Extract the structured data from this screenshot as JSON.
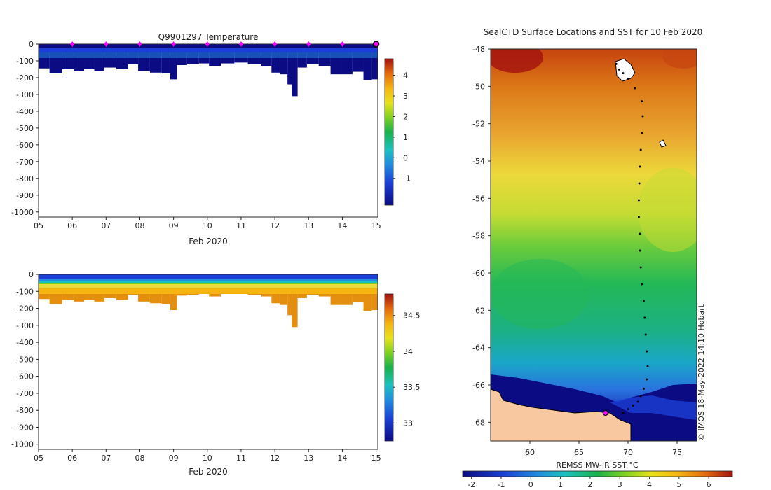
{
  "colors": {
    "background": "#ffffff",
    "axis": "#262626",
    "land": "#f8c9a1",
    "marker": "#ff00ff",
    "track": "#000000"
  },
  "chart_data": [
    {
      "id": "temperature",
      "type": "heatmap",
      "title": "Q9901297  Temperature",
      "xlabel": "Feb 2020",
      "ylabel": "",
      "xlim": [
        5,
        15.05
      ],
      "ylim": [
        -1030,
        0
      ],
      "x_ticks": [
        5,
        6,
        7,
        8,
        9,
        10,
        11,
        12,
        13,
        14,
        15
      ],
      "x_tick_labels": [
        "05",
        "06",
        "07",
        "08",
        "09",
        "10",
        "11",
        "12",
        "13",
        "14",
        "15"
      ],
      "y_ticks": [
        0,
        -100,
        -200,
        -300,
        -400,
        -500,
        -600,
        -700,
        -800,
        -900,
        -1000
      ],
      "y_tick_labels": [
        "0",
        "-100",
        "-200",
        "-300",
        "-400",
        "-500",
        "-600",
        "-700",
        "-800",
        "-900",
        "-1000"
      ],
      "colorbar": {
        "range": [
          -2.3,
          4.8
        ],
        "ticks": [
          -1,
          0,
          1,
          2,
          3,
          4
        ],
        "tick_labels": [
          "-1",
          "0",
          "1",
          "2",
          "3",
          "4"
        ]
      },
      "surface_markers_x": [
        6,
        7,
        8,
        9,
        10,
        11,
        12,
        13,
        14
      ],
      "last_profile_x": 15.0,
      "profile_depths_x": [
        5.15,
        5.5,
        5.9,
        6.2,
        6.5,
        6.8,
        7.1,
        7.5,
        7.8,
        8.1,
        8.5,
        8.8,
        9.0,
        9.2,
        9.6,
        9.9,
        10.2,
        10.6,
        11.0,
        11.4,
        11.8,
        12.0,
        12.3,
        12.45,
        12.55,
        12.8,
        13.1,
        13.5,
        13.8,
        14.1,
        14.5,
        14.75,
        15.0
      ],
      "profile_depths": [
        -145,
        -175,
        -150,
        -160,
        -150,
        -160,
        -140,
        -150,
        -120,
        -160,
        -170,
        -175,
        -210,
        -125,
        -120,
        -115,
        -130,
        -115,
        -110,
        -120,
        -130,
        -170,
        -180,
        -240,
        -310,
        -140,
        -120,
        -130,
        -180,
        -180,
        -165,
        -215,
        -210
      ]
    },
    {
      "id": "salinity",
      "type": "heatmap",
      "title": "",
      "xlabel": "Feb 2020",
      "ylabel": "",
      "xlim": [
        5,
        15.05
      ],
      "ylim": [
        -1030,
        0
      ],
      "x_ticks": [
        5,
        6,
        7,
        8,
        9,
        10,
        11,
        12,
        13,
        14,
        15
      ],
      "x_tick_labels": [
        "05",
        "06",
        "07",
        "08",
        "09",
        "10",
        "11",
        "12",
        "13",
        "14",
        "15"
      ],
      "y_ticks": [
        0,
        -100,
        -200,
        -300,
        -400,
        -500,
        -600,
        -700,
        -800,
        -900,
        -1000
      ],
      "y_tick_labels": [
        "0",
        "-100",
        "-200",
        "-300",
        "-400",
        "-500",
        "-600",
        "-700",
        "-800",
        "-900",
        "-1000"
      ],
      "colorbar": {
        "range": [
          32.75,
          34.8
        ],
        "ticks": [
          33,
          33.5,
          34,
          34.5
        ],
        "tick_labels": [
          "33",
          "33.5",
          "34",
          "34.5"
        ]
      }
    },
    {
      "id": "sst-map",
      "type": "heatmap",
      "title": "SealCTD Surface Locations and SST for 10 Feb 2020",
      "xlabel": "",
      "ylabel": "",
      "xlim": [
        56,
        77
      ],
      "ylim": [
        -69,
        -48
      ],
      "x_ticks": [
        60,
        65,
        70,
        75
      ],
      "x_tick_labels": [
        "60",
        "65",
        "70",
        "75"
      ],
      "y_ticks": [
        -48,
        -50,
        -52,
        -54,
        -56,
        -58,
        -60,
        -62,
        -64,
        -66,
        -68
      ],
      "y_tick_labels": [
        "-48",
        "-50",
        "-52",
        "-54",
        "-56",
        "-58",
        "-60",
        "-62",
        "-64",
        "-66",
        "-68"
      ],
      "colorbar": {
        "label": "REMSS MW-IR SST °C",
        "range": [
          -2.3,
          6.8
        ],
        "ticks": [
          -2,
          -1,
          0,
          1,
          2,
          3,
          4,
          5,
          6
        ],
        "tick_labels": [
          "-2",
          "-1",
          "0",
          "1",
          "2",
          "3",
          "4",
          "5",
          "6"
        ]
      },
      "track_lon": [
        68.8,
        69.1,
        69.5,
        70.0,
        70.7,
        71.4,
        71.5,
        71.4,
        71.3,
        71.2,
        71.15,
        71.1,
        71.1,
        71.2,
        71.2,
        71.3,
        71.4,
        71.6,
        71.7,
        71.8,
        71.9,
        72.0,
        71.9,
        71.6,
        71.3,
        71.0,
        70.5,
        70.0,
        69.5
      ],
      "track_lat": [
        -48.8,
        -49.1,
        -49.3,
        -49.6,
        -50.1,
        -50.8,
        -51.6,
        -52.5,
        -53.4,
        -54.3,
        -55.2,
        -56.1,
        -57.0,
        -57.9,
        -58.8,
        -59.7,
        -60.6,
        -61.5,
        -62.4,
        -63.3,
        -64.2,
        -65.0,
        -65.7,
        -66.2,
        -66.6,
        -66.9,
        -67.1,
        -67.3,
        -67.5
      ],
      "last_position": [
        67.7,
        -67.5
      ],
      "credit": "© IMOS 18-May-2022 14:10 Hobart"
    }
  ]
}
